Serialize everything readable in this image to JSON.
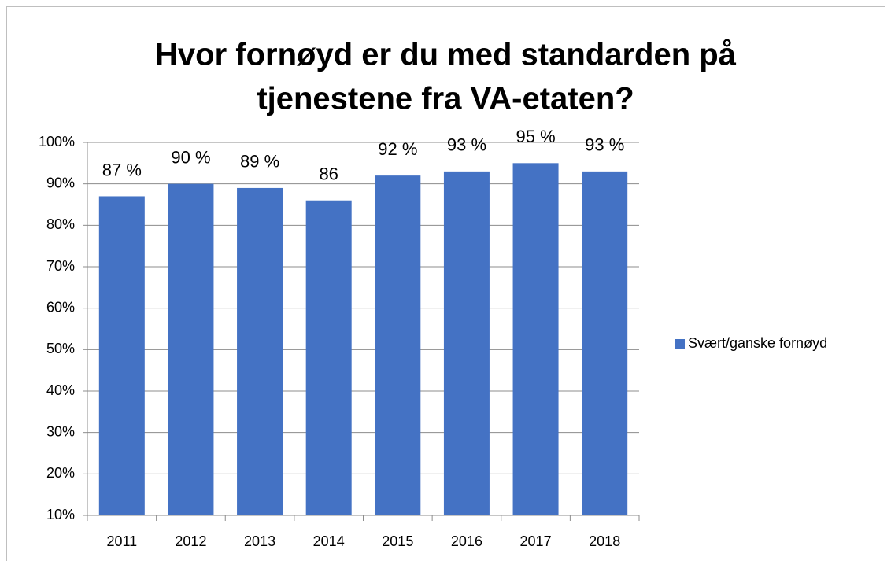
{
  "chart_data": {
    "type": "bar",
    "title": [
      "Hvor fornøyd er du med standarden på",
      "tjenestene fra VA-etaten?"
    ],
    "categories": [
      "2011",
      "2012",
      "2013",
      "2014",
      "2015",
      "2016",
      "2017",
      "2018"
    ],
    "series": [
      {
        "name": "Svært/ganske fornøyd",
        "color": "#4472c4",
        "values": [
          87,
          90,
          89,
          86,
          92,
          93,
          95,
          93
        ],
        "value_labels": [
          "87 %",
          "90 %",
          "89 %",
          "86",
          "92 %",
          "93 %",
          "95 %",
          "93 %"
        ]
      }
    ],
    "ylim": [
      10,
      100
    ],
    "yticks": [
      {
        "value": 10,
        "label": "10%"
      },
      {
        "value": 20,
        "label": "20%"
      },
      {
        "value": 30,
        "label": "30%"
      },
      {
        "value": 40,
        "label": "40%"
      },
      {
        "value": 50,
        "label": "50%"
      },
      {
        "value": 60,
        "label": "60%"
      },
      {
        "value": 70,
        "label": "70%"
      },
      {
        "value": 80,
        "label": "80%"
      },
      {
        "value": 90,
        "label": "90%"
      },
      {
        "value": 100,
        "label": "100%"
      }
    ],
    "grid": true,
    "legend": "right"
  }
}
